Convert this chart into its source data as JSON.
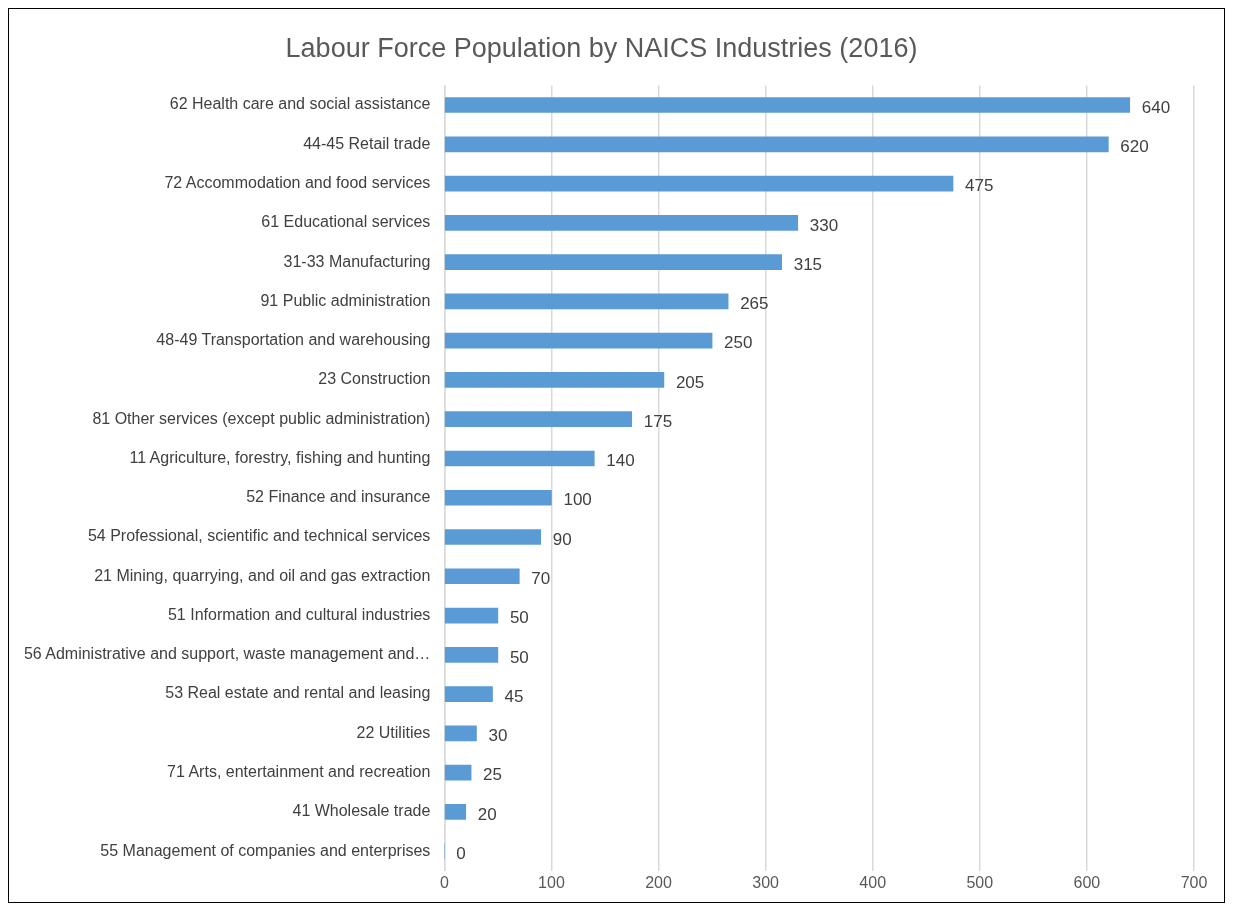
{
  "chart_data": {
    "type": "bar",
    "orientation": "horizontal",
    "title": "Labour Force Population by NAICS Industries (2016)",
    "categories": [
      "62 Health care and social assistance",
      "44-45 Retail trade",
      "72 Accommodation and food services",
      "61 Educational services",
      "31-33 Manufacturing",
      "91 Public administration",
      "48-49 Transportation and warehousing",
      "23 Construction",
      "81 Other services (except public administration)",
      "11 Agriculture, forestry, fishing and hunting",
      "52 Finance and insurance",
      "54 Professional, scientific and technical services",
      "21 Mining, quarrying, and oil and gas extraction",
      "51 Information and cultural industries",
      "56 Administrative and support, waste management and…",
      "53 Real estate and rental and leasing",
      "22 Utilities",
      "71 Arts, entertainment and recreation",
      "41 Wholesale trade",
      "55 Management of companies and enterprises"
    ],
    "values": [
      640,
      620,
      475,
      330,
      315,
      265,
      250,
      205,
      175,
      140,
      100,
      90,
      70,
      50,
      50,
      45,
      30,
      25,
      20,
      0
    ],
    "color": "#5b9bd5",
    "xlim": [
      0,
      700
    ],
    "xticks": [
      0,
      100,
      200,
      300,
      400,
      500,
      600,
      700
    ],
    "grid": "x",
    "data_labels": true
  }
}
